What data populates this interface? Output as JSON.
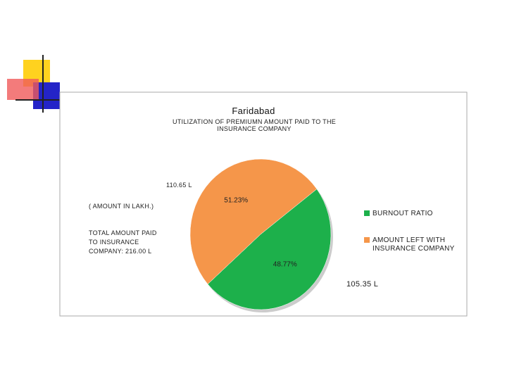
{
  "chart_data": {
    "type": "pie",
    "title": "Faridabad",
    "subtitle": "UTILIZATION OF PREMIUMN AMOUNT PAID TO THE INSURANCE COMPANY",
    "categories": [
      "BURNOUT RATIO",
      "AMOUNT LEFT WITH INSURANCE COMPANY"
    ],
    "values": [
      48.77,
      51.23
    ],
    "value_labels": [
      "48.77%",
      "51.23%"
    ],
    "colors": [
      "#1db04b",
      "#f5964a"
    ],
    "amount_labels": [
      "105.35 L",
      "110.65 L"
    ],
    "unit_note": "( AMOUNT IN LAKH.)",
    "total_note": "TOTAL AMOUNT PAID TO INSURANCE COMPANY: 216.00 L",
    "legend": "right"
  }
}
